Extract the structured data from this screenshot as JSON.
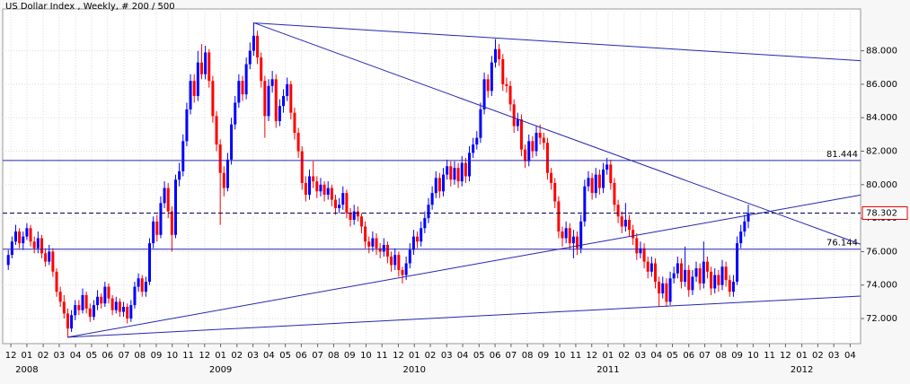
{
  "chart_data": {
    "type": "candlestick",
    "title": "US Dollar Index , Weekly, # 200 / 500",
    "up_color": "#0000ff",
    "down_color": "#ff0000",
    "line_color": "#2424b0",
    "grid": true,
    "ylim": [
      70.5,
      90.5
    ],
    "yticks": [
      {
        "value": 72,
        "label": "72.000"
      },
      {
        "value": 74,
        "label": "74.000"
      },
      {
        "value": 76,
        "label": "76.000"
      },
      {
        "value": 78,
        "label": "78.000"
      },
      {
        "value": 80,
        "label": "80.000"
      },
      {
        "value": 82,
        "label": "82.000"
      },
      {
        "value": 84,
        "label": "84.000"
      },
      {
        "value": 86,
        "label": "86.000"
      },
      {
        "value": 88,
        "label": "88.000"
      }
    ],
    "xlim": [
      -1.5,
      229.2
    ],
    "xticks": [
      {
        "value": 0.7,
        "label": "12"
      },
      {
        "value": 5.0,
        "label": "01"
      },
      {
        "value": 9.4,
        "label": "02"
      },
      {
        "value": 13.7,
        "label": "03"
      },
      {
        "value": 18.1,
        "label": "04"
      },
      {
        "value": 22.4,
        "label": "05"
      },
      {
        "value": 26.7,
        "label": "06"
      },
      {
        "value": 31.1,
        "label": "07"
      },
      {
        "value": 35.4,
        "label": "08"
      },
      {
        "value": 39.8,
        "label": "09"
      },
      {
        "value": 44.1,
        "label": "10"
      },
      {
        "value": 48.4,
        "label": "11"
      },
      {
        "value": 52.8,
        "label": "12"
      },
      {
        "value": 57.1,
        "label": "01"
      },
      {
        "value": 61.5,
        "label": "02"
      },
      {
        "value": 65.8,
        "label": "03"
      },
      {
        "value": 70.1,
        "label": "04"
      },
      {
        "value": 74.5,
        "label": "05"
      },
      {
        "value": 78.8,
        "label": "06"
      },
      {
        "value": 83.2,
        "label": "07"
      },
      {
        "value": 87.5,
        "label": "08"
      },
      {
        "value": 91.8,
        "label": "09"
      },
      {
        "value": 96.2,
        "label": "10"
      },
      {
        "value": 100.5,
        "label": "11"
      },
      {
        "value": 104.9,
        "label": "12"
      },
      {
        "value": 109.2,
        "label": "01"
      },
      {
        "value": 113.5,
        "label": "02"
      },
      {
        "value": 117.9,
        "label": "03"
      },
      {
        "value": 122.2,
        "label": "04"
      },
      {
        "value": 126.6,
        "label": "05"
      },
      {
        "value": 130.9,
        "label": "06"
      },
      {
        "value": 135.2,
        "label": "07"
      },
      {
        "value": 139.6,
        "label": "08"
      },
      {
        "value": 143.9,
        "label": "09"
      },
      {
        "value": 148.3,
        "label": "10"
      },
      {
        "value": 152.6,
        "label": "11"
      },
      {
        "value": 156.9,
        "label": "12"
      },
      {
        "value": 161.3,
        "label": "01"
      },
      {
        "value": 165.6,
        "label": "02"
      },
      {
        "value": 170.0,
        "label": "03"
      },
      {
        "value": 174.3,
        "label": "04"
      },
      {
        "value": 178.6,
        "label": "05"
      },
      {
        "value": 183.0,
        "label": "06"
      },
      {
        "value": 187.3,
        "label": "07"
      },
      {
        "value": 191.7,
        "label": "08"
      },
      {
        "value": 196.0,
        "label": "09"
      },
      {
        "value": 200.3,
        "label": "10"
      },
      {
        "value": 204.7,
        "label": "11"
      },
      {
        "value": 209.0,
        "label": "12"
      },
      {
        "value": 213.4,
        "label": "01"
      },
      {
        "value": 217.7,
        "label": "02"
      },
      {
        "value": 222.0,
        "label": "03"
      },
      {
        "value": 226.4,
        "label": "04"
      }
    ],
    "year_labels": [
      {
        "value": 5.0,
        "label": "2008"
      },
      {
        "value": 57.1,
        "label": "2009"
      },
      {
        "value": 109.2,
        "label": "2010"
      },
      {
        "value": 161.3,
        "label": "2011"
      },
      {
        "value": 213.4,
        "label": "2012"
      }
    ],
    "trend_lines": [
      {
        "from": [
          66.2,
          89.66
        ],
        "to": [
          229.2,
          87.41
        ]
      },
      {
        "from": [
          66.2,
          89.66
        ],
        "to": [
          229.2,
          76.44
        ]
      },
      {
        "from": [
          15.9,
          70.88
        ],
        "to": [
          229.2,
          79.38
        ]
      },
      {
        "from": [
          15.9,
          70.88
        ],
        "to": [
          229.2,
          73.34
        ]
      }
    ],
    "level_lines": [
      {
        "value": 81.444,
        "label": "81.444"
      },
      {
        "value": 76.144,
        "label": "76.144"
      }
    ],
    "current_price": {
      "value": 78.302,
      "label": "78.302"
    },
    "candles": [
      [
        75.2,
        76.1,
        74.9,
        75.8
      ],
      [
        75.8,
        76.9,
        75.6,
        76.6
      ],
      [
        76.6,
        77.6,
        76.4,
        77.2
      ],
      [
        77.2,
        77.4,
        76.2,
        76.5
      ],
      [
        76.5,
        77.2,
        76.1,
        76.9
      ],
      [
        76.9,
        77.7,
        76.7,
        77.4
      ],
      [
        77.4,
        77.6,
        76.3,
        76.6
      ],
      [
        76.6,
        76.9,
        75.9,
        76.2
      ],
      [
        76.2,
        77.2,
        75.9,
        76.8
      ],
      [
        76.8,
        77.0,
        75.6,
        75.9
      ],
      [
        75.9,
        76.2,
        75.1,
        75.4
      ],
      [
        75.4,
        76.4,
        75.2,
        76.0
      ],
      [
        76.0,
        76.2,
        74.5,
        74.8
      ],
      [
        74.8,
        75.0,
        73.3,
        73.6
      ],
      [
        73.6,
        73.9,
        72.7,
        73.0
      ],
      [
        73.0,
        73.4,
        72.0,
        72.3
      ],
      [
        72.3,
        72.6,
        70.9,
        71.4
      ],
      [
        71.4,
        72.5,
        71.2,
        72.2
      ],
      [
        72.2,
        73.1,
        71.9,
        72.8
      ],
      [
        72.8,
        73.1,
        72.2,
        72.5
      ],
      [
        72.5,
        73.8,
        72.3,
        73.4
      ],
      [
        73.4,
        73.6,
        72.3,
        72.6
      ],
      [
        72.6,
        72.9,
        71.8,
        72.1
      ],
      [
        72.1,
        73.1,
        71.9,
        72.8
      ],
      [
        72.8,
        73.7,
        72.5,
        73.3
      ],
      [
        73.3,
        73.5,
        72.6,
        72.9
      ],
      [
        72.9,
        74.2,
        72.7,
        73.9
      ],
      [
        73.9,
        74.1,
        72.9,
        73.2
      ],
      [
        73.2,
        73.4,
        72.2,
        72.5
      ],
      [
        72.5,
        73.3,
        72.3,
        73.0
      ],
      [
        73.0,
        73.2,
        72.1,
        72.4
      ],
      [
        72.4,
        73.0,
        72.1,
        72.7
      ],
      [
        72.7,
        72.9,
        71.7,
        72.0
      ],
      [
        72.0,
        73.1,
        71.8,
        72.8
      ],
      [
        72.8,
        74.2,
        72.6,
        73.9
      ],
      [
        73.9,
        74.7,
        73.6,
        74.4
      ],
      [
        74.4,
        74.6,
        73.3,
        73.6
      ],
      [
        73.6,
        74.5,
        73.3,
        74.2
      ],
      [
        74.2,
        76.8,
        74.0,
        76.5
      ],
      [
        76.5,
        78.1,
        76.2,
        77.8
      ],
      [
        77.8,
        78.2,
        76.6,
        77.0
      ],
      [
        77.0,
        79.3,
        76.8,
        78.9
      ],
      [
        78.9,
        80.2,
        78.6,
        79.8
      ],
      [
        79.8,
        80.1,
        78.0,
        78.4
      ],
      [
        78.4,
        78.7,
        76.0,
        77.0
      ],
      [
        77.0,
        80.6,
        76.8,
        80.3
      ],
      [
        80.3,
        81.3,
        79.9,
        80.8
      ],
      [
        80.8,
        83.0,
        80.5,
        82.6
      ],
      [
        82.6,
        84.9,
        82.3,
        84.5
      ],
      [
        84.5,
        86.6,
        84.2,
        86.2
      ],
      [
        86.2,
        86.6,
        84.9,
        85.3
      ],
      [
        85.3,
        88.0,
        85.0,
        87.3
      ],
      [
        87.3,
        88.4,
        86.3,
        86.6
      ],
      [
        86.6,
        88.3,
        86.3,
        87.9
      ],
      [
        87.9,
        88.1,
        85.8,
        86.2
      ],
      [
        86.2,
        86.5,
        83.7,
        84.1
      ],
      [
        84.1,
        84.4,
        82.0,
        82.4
      ],
      [
        82.4,
        82.7,
        77.6,
        80.7
      ],
      [
        80.7,
        81.1,
        79.3,
        79.8
      ],
      [
        79.8,
        81.9,
        79.6,
        81.5
      ],
      [
        81.5,
        84.0,
        81.2,
        83.6
      ],
      [
        83.6,
        85.3,
        83.3,
        84.9
      ],
      [
        84.9,
        86.6,
        84.6,
        86.2
      ],
      [
        86.2,
        86.5,
        85.0,
        85.4
      ],
      [
        85.4,
        87.6,
        85.1,
        87.2
      ],
      [
        87.2,
        88.5,
        86.9,
        88.0
      ],
      [
        88.0,
        89.7,
        87.7,
        88.9
      ],
      [
        88.9,
        89.2,
        87.2,
        87.6
      ],
      [
        87.6,
        87.9,
        85.8,
        86.2
      ],
      [
        86.2,
        86.5,
        82.8,
        84.1
      ],
      [
        84.1,
        86.3,
        83.8,
        85.9
      ],
      [
        85.9,
        86.8,
        85.5,
        86.3
      ],
      [
        86.3,
        86.6,
        83.4,
        83.8
      ],
      [
        83.8,
        85.1,
        83.5,
        84.7
      ],
      [
        84.7,
        85.7,
        84.3,
        85.3
      ],
      [
        85.3,
        86.4,
        85.0,
        86.0
      ],
      [
        86.0,
        86.2,
        83.9,
        84.3
      ],
      [
        84.3,
        84.6,
        82.7,
        83.1
      ],
      [
        83.1,
        83.4,
        81.6,
        82.0
      ],
      [
        82.0,
        82.3,
        79.7,
        80.1
      ],
      [
        80.1,
        80.5,
        79.0,
        79.4
      ],
      [
        79.4,
        80.9,
        79.1,
        80.5
      ],
      [
        80.5,
        81.4,
        79.8,
        80.2
      ],
      [
        80.2,
        80.5,
        79.2,
        79.6
      ],
      [
        79.6,
        80.4,
        79.3,
        80.0
      ],
      [
        80.0,
        80.2,
        79.0,
        79.4
      ],
      [
        79.4,
        80.2,
        79.1,
        79.8
      ],
      [
        79.8,
        80.0,
        78.7,
        79.1
      ],
      [
        79.1,
        79.4,
        78.2,
        78.6
      ],
      [
        78.6,
        79.2,
        78.3,
        78.8
      ],
      [
        78.8,
        79.9,
        78.5,
        79.5
      ],
      [
        79.5,
        79.7,
        78.0,
        78.3
      ],
      [
        78.3,
        78.6,
        77.5,
        77.9
      ],
      [
        77.9,
        78.8,
        77.6,
        78.4
      ],
      [
        78.4,
        78.7,
        77.8,
        78.1
      ],
      [
        78.1,
        78.3,
        77.1,
        77.5
      ],
      [
        77.5,
        77.8,
        76.2,
        76.6
      ],
      [
        76.6,
        76.9,
        75.9,
        76.3
      ],
      [
        76.3,
        77.2,
        76.0,
        76.8
      ],
      [
        76.8,
        77.1,
        75.8,
        76.2
      ],
      [
        76.2,
        76.5,
        75.6,
        76.0
      ],
      [
        76.0,
        76.8,
        75.7,
        76.4
      ],
      [
        76.4,
        76.6,
        75.3,
        75.7
      ],
      [
        75.7,
        76.0,
        74.8,
        75.2
      ],
      [
        75.2,
        76.2,
        74.9,
        75.8
      ],
      [
        75.8,
        76.0,
        74.5,
        74.9
      ],
      [
        74.9,
        75.1,
        74.1,
        74.6
      ],
      [
        74.6,
        75.7,
        74.3,
        75.3
      ],
      [
        75.3,
        76.5,
        75.0,
        76.1
      ],
      [
        76.1,
        77.3,
        75.8,
        76.9
      ],
      [
        76.9,
        77.2,
        76.2,
        76.6
      ],
      [
        76.6,
        77.8,
        76.3,
        77.4
      ],
      [
        77.4,
        78.4,
        77.1,
        78.0
      ],
      [
        78.0,
        79.2,
        77.7,
        78.8
      ],
      [
        78.8,
        79.9,
        78.5,
        79.5
      ],
      [
        79.5,
        80.8,
        79.2,
        80.4
      ],
      [
        80.4,
        80.7,
        79.2,
        79.6
      ],
      [
        79.6,
        81.0,
        79.3,
        80.6
      ],
      [
        80.6,
        81.5,
        80.3,
        81.1
      ],
      [
        81.1,
        81.4,
        79.9,
        80.3
      ],
      [
        80.3,
        81.4,
        80.0,
        81.0
      ],
      [
        81.0,
        81.3,
        79.8,
        80.2
      ],
      [
        80.2,
        81.7,
        79.9,
        81.3
      ],
      [
        81.3,
        81.6,
        80.1,
        80.5
      ],
      [
        80.5,
        82.3,
        80.2,
        81.9
      ],
      [
        81.9,
        82.8,
        81.6,
        82.4
      ],
      [
        82.4,
        83.2,
        82.1,
        82.8
      ],
      [
        82.8,
        84.9,
        82.5,
        84.5
      ],
      [
        84.5,
        86.7,
        84.2,
        86.3
      ],
      [
        86.3,
        86.6,
        85.2,
        85.6
      ],
      [
        85.6,
        87.7,
        85.3,
        87.3
      ],
      [
        87.3,
        88.7,
        87.0,
        88.1
      ],
      [
        88.1,
        88.4,
        87.1,
        87.5
      ],
      [
        87.5,
        87.8,
        85.6,
        86.0
      ],
      [
        86.0,
        86.4,
        85.5,
        85.9
      ],
      [
        85.9,
        86.2,
        84.4,
        84.8
      ],
      [
        84.8,
        85.1,
        83.1,
        83.5
      ],
      [
        83.5,
        84.3,
        83.2,
        83.9
      ],
      [
        83.9,
        84.2,
        81.7,
        82.1
      ],
      [
        82.1,
        82.4,
        81.0,
        81.4
      ],
      [
        81.4,
        83.0,
        81.1,
        82.6
      ],
      [
        82.6,
        82.9,
        81.6,
        82.0
      ],
      [
        82.0,
        83.5,
        81.7,
        83.1
      ],
      [
        83.1,
        83.6,
        82.4,
        82.8
      ],
      [
        82.8,
        83.1,
        82.1,
        82.5
      ],
      [
        82.5,
        82.8,
        80.3,
        80.7
      ],
      [
        80.7,
        81.0,
        79.7,
        80.1
      ],
      [
        80.1,
        80.4,
        78.6,
        79.0
      ],
      [
        79.0,
        79.3,
        76.8,
        77.2
      ],
      [
        77.2,
        77.5,
        76.3,
        76.8
      ],
      [
        76.8,
        77.8,
        76.5,
        77.4
      ],
      [
        77.4,
        77.7,
        76.1,
        76.5
      ],
      [
        76.5,
        77.3,
        75.6,
        76.9
      ],
      [
        76.9,
        77.2,
        75.8,
        76.2
      ],
      [
        76.2,
        78.2,
        75.9,
        77.8
      ],
      [
        77.8,
        80.3,
        77.5,
        79.9
      ],
      [
        79.9,
        80.8,
        79.6,
        80.4
      ],
      [
        80.4,
        80.7,
        79.1,
        79.5
      ],
      [
        79.5,
        81.0,
        79.2,
        80.6
      ],
      [
        80.6,
        80.9,
        79.4,
        79.8
      ],
      [
        79.8,
        81.3,
        79.5,
        80.9
      ],
      [
        80.9,
        81.6,
        80.6,
        81.2
      ],
      [
        81.2,
        81.5,
        79.7,
        80.1
      ],
      [
        80.1,
        80.4,
        78.4,
        78.8
      ],
      [
        78.8,
        79.1,
        77.7,
        78.1
      ],
      [
        78.1,
        78.4,
        77.1,
        77.5
      ],
      [
        77.5,
        78.9,
        77.2,
        77.9
      ],
      [
        77.9,
        78.2,
        76.9,
        77.3
      ],
      [
        77.3,
        77.6,
        76.4,
        76.8
      ],
      [
        76.8,
        77.1,
        75.5,
        75.9
      ],
      [
        75.9,
        76.6,
        75.6,
        76.2
      ],
      [
        76.2,
        76.5,
        75.0,
        75.4
      ],
      [
        75.4,
        75.7,
        74.4,
        74.8
      ],
      [
        74.8,
        75.7,
        74.5,
        75.3
      ],
      [
        75.3,
        75.6,
        73.8,
        74.2
      ],
      [
        74.2,
        74.5,
        72.7,
        73.5
      ],
      [
        73.5,
        74.5,
        73.2,
        74.1
      ],
      [
        74.1,
        74.4,
        72.7,
        73.0
      ],
      [
        73.0,
        74.8,
        72.8,
        74.4
      ],
      [
        74.4,
        75.1,
        74.1,
        74.7
      ],
      [
        74.7,
        75.7,
        74.4,
        75.3
      ],
      [
        75.3,
        75.6,
        73.8,
        74.2
      ],
      [
        74.2,
        76.3,
        73.9,
        74.9
      ],
      [
        74.9,
        75.2,
        73.3,
        73.7
      ],
      [
        73.7,
        74.9,
        73.4,
        74.5
      ],
      [
        74.5,
        75.4,
        74.2,
        75.0
      ],
      [
        75.0,
        75.3,
        73.7,
        74.1
      ],
      [
        74.1,
        76.6,
        73.8,
        75.4
      ],
      [
        75.4,
        75.7,
        74.4,
        74.8
      ],
      [
        74.8,
        75.1,
        73.4,
        73.8
      ],
      [
        73.8,
        75.0,
        73.5,
        74.6
      ],
      [
        74.6,
        74.9,
        73.6,
        74.0
      ],
      [
        74.0,
        75.5,
        73.7,
        75.1
      ],
      [
        75.1,
        75.4,
        73.9,
        74.3
      ],
      [
        74.3,
        74.6,
        73.3,
        73.6
      ],
      [
        73.6,
        74.6,
        73.3,
        74.2
      ],
      [
        74.2,
        76.9,
        74.0,
        76.5
      ],
      [
        76.5,
        77.6,
        76.2,
        77.2
      ],
      [
        77.2,
        78.2,
        76.9,
        77.8
      ],
      [
        77.8,
        78.8,
        77.4,
        78.3
      ]
    ]
  }
}
